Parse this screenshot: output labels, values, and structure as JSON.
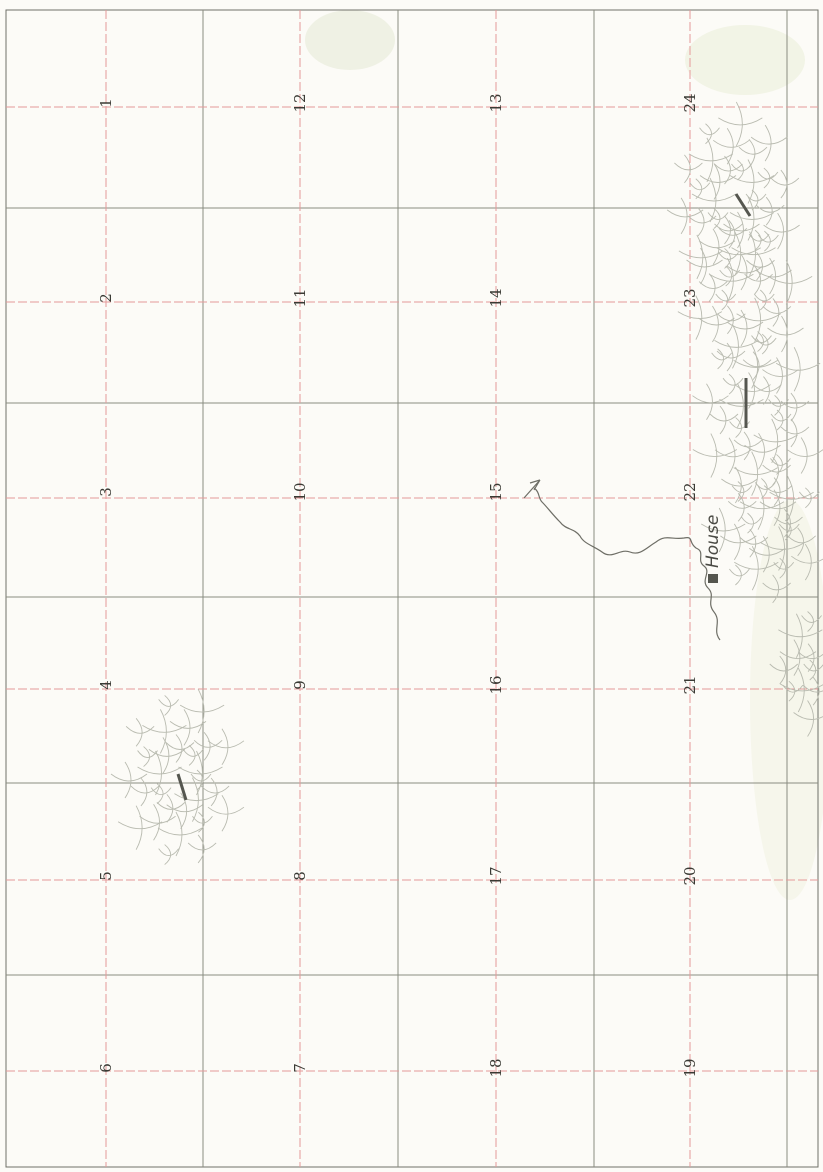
{
  "map": {
    "sections": [
      {
        "id": "1",
        "label": "1"
      },
      {
        "id": "2",
        "label": "2"
      },
      {
        "id": "3",
        "label": "3"
      },
      {
        "id": "4",
        "label": "4"
      },
      {
        "id": "5",
        "label": "5"
      },
      {
        "id": "6",
        "label": "6"
      },
      {
        "id": "12",
        "label": "12"
      },
      {
        "id": "11",
        "label": "11"
      },
      {
        "id": "10",
        "label": "10"
      },
      {
        "id": "9",
        "label": "9"
      },
      {
        "id": "8",
        "label": "8"
      },
      {
        "id": "7",
        "label": "7"
      },
      {
        "id": "13",
        "label": "13"
      },
      {
        "id": "14",
        "label": "14"
      },
      {
        "id": "15",
        "label": "15"
      },
      {
        "id": "16",
        "label": "16"
      },
      {
        "id": "17",
        "label": "17"
      },
      {
        "id": "18",
        "label": "18"
      },
      {
        "id": "24",
        "label": "24"
      },
      {
        "id": "23",
        "label": "23"
      },
      {
        "id": "22",
        "label": "22"
      },
      {
        "id": "21",
        "label": "21"
      },
      {
        "id": "20",
        "label": "20"
      },
      {
        "id": "19",
        "label": "19"
      }
    ],
    "house_label": "House",
    "colors": {
      "grid": "#8a8c80",
      "section_line": "#e59a9a",
      "hachure": "#b9bbb0",
      "stream": "#6e6e66",
      "house": "#55564f"
    }
  }
}
